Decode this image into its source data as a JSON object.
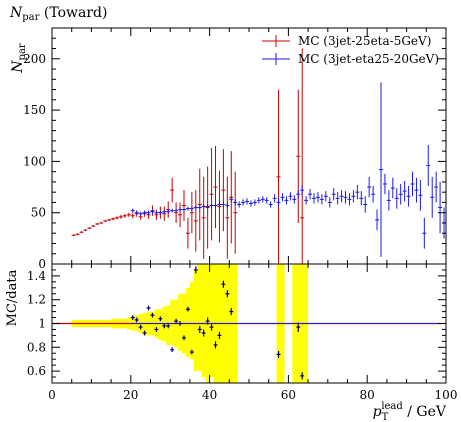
{
  "chart_data": {
    "type": "scatter",
    "title_main": "N",
    "title_sub": "par",
    "title_rest": " (Toward)",
    "ylabel_main": "N",
    "ylabel_sub": "par",
    "ratio_ylabel": "MC/data",
    "xlabel_main": "p",
    "xlabel_sub": "T",
    "xlabel_sup": "lead",
    "xlabel_unit": " / GeV",
    "xlim": [
      0,
      100
    ],
    "ylim": [
      0,
      230
    ],
    "ratio_ylim": [
      0.5,
      1.5
    ],
    "x_ticks": [
      "0",
      "20",
      "40",
      "60",
      "80",
      "100"
    ],
    "y_ticks": [
      "0",
      "50",
      "100",
      "150",
      "200"
    ],
    "ratio_y_ticks": [
      "0.6",
      "0.8",
      "1",
      "1.2",
      "1.4"
    ],
    "legend_position": "top-right",
    "colors": {
      "red_series": "#cc0000",
      "blue_series": "#1a1ae6",
      "band": "#ffff00"
    },
    "series": [
      {
        "name": "MC (3jet-25eta-5GeV)",
        "color": "#cc0000",
        "points": [
          [
            5.5,
            28,
            1
          ],
          [
            6.5,
            29,
            1
          ],
          [
            7.5,
            31,
            1
          ],
          [
            8.5,
            33,
            1
          ],
          [
            9.5,
            35,
            1
          ],
          [
            10.5,
            37,
            1
          ],
          [
            11.5,
            39,
            1
          ],
          [
            12.5,
            40,
            1
          ],
          [
            13.5,
            42,
            1
          ],
          [
            14.5,
            43,
            1
          ],
          [
            15.5,
            44,
            1.5
          ],
          [
            16.5,
            45,
            1.5
          ],
          [
            17.5,
            46,
            2
          ],
          [
            18.5,
            47,
            2
          ],
          [
            19.5,
            48,
            2
          ],
          [
            20.5,
            47,
            2.5
          ],
          [
            21.5,
            49,
            3
          ],
          [
            22.5,
            46,
            3
          ],
          [
            23.5,
            49,
            3
          ],
          [
            24.5,
            48,
            4
          ],
          [
            25.5,
            52,
            5
          ],
          [
            26.5,
            48,
            5
          ],
          [
            27.5,
            50,
            6
          ],
          [
            28.5,
            49,
            7
          ],
          [
            29.5,
            53,
            8
          ],
          [
            30.5,
            72,
            12
          ],
          [
            31.5,
            50,
            10
          ],
          [
            32.5,
            48,
            12
          ],
          [
            33.5,
            57,
            15
          ],
          [
            34.5,
            30,
            15
          ],
          [
            35.5,
            50,
            20
          ],
          [
            36.5,
            42,
            30
          ],
          [
            37.5,
            58,
            35
          ],
          [
            38.5,
            45,
            40
          ],
          [
            39.5,
            55,
            40
          ],
          [
            40.5,
            68,
            45
          ],
          [
            41.5,
            75,
            40
          ],
          [
            42.5,
            56,
            35
          ],
          [
            43.5,
            72,
            40
          ],
          [
            44.5,
            45,
            40
          ],
          [
            45.5,
            65,
            45
          ],
          [
            46.5,
            50,
            40
          ],
          [
            57.5,
            85,
            85
          ],
          [
            62.5,
            105,
            65
          ],
          [
            63.5,
            45,
            165
          ]
        ]
      },
      {
        "name": "MC (3jet-eta25-20GeV)",
        "color": "#1a1ae6",
        "points": [
          [
            20.5,
            52,
            2
          ],
          [
            21.5,
            50,
            2
          ],
          [
            22.5,
            49,
            2
          ],
          [
            23.5,
            50,
            2
          ],
          [
            24.5,
            50,
            2
          ],
          [
            25.5,
            51,
            2
          ],
          [
            26.5,
            50,
            2
          ],
          [
            27.5,
            50,
            2
          ],
          [
            28.5,
            51,
            2
          ],
          [
            29.5,
            51,
            2
          ],
          [
            30.5,
            52,
            2
          ],
          [
            31.5,
            52,
            2
          ],
          [
            32.5,
            53,
            2
          ],
          [
            33.5,
            53,
            2
          ],
          [
            34.5,
            54,
            2
          ],
          [
            35.5,
            54,
            2
          ],
          [
            36.5,
            55,
            2
          ],
          [
            37.5,
            55,
            2
          ],
          [
            38.5,
            56,
            2
          ],
          [
            39.5,
            56,
            2
          ],
          [
            40.5,
            57,
            2
          ],
          [
            41.5,
            57,
            2
          ],
          [
            42.5,
            58,
            3
          ],
          [
            43.5,
            58,
            3
          ],
          [
            44.5,
            57,
            3
          ],
          [
            45.5,
            63,
            3
          ],
          [
            46.5,
            60,
            3
          ],
          [
            47.5,
            58,
            3
          ],
          [
            48.5,
            60,
            3
          ],
          [
            49.5,
            61,
            3
          ],
          [
            50.5,
            59,
            3
          ],
          [
            51.5,
            60,
            3
          ],
          [
            52.5,
            62,
            3
          ],
          [
            53.5,
            63,
            3
          ],
          [
            54.5,
            62,
            3
          ],
          [
            55.5,
            58,
            3
          ],
          [
            56.5,
            64,
            4
          ],
          [
            57.5,
            60,
            4
          ],
          [
            58.5,
            65,
            4
          ],
          [
            59.5,
            62,
            4
          ],
          [
            60.5,
            66,
            4
          ],
          [
            61.5,
            63,
            4
          ],
          [
            62.5,
            68,
            4
          ],
          [
            63.5,
            72,
            5
          ],
          [
            64.5,
            62,
            4
          ],
          [
            65.5,
            68,
            5
          ],
          [
            66.5,
            64,
            5
          ],
          [
            67.5,
            65,
            5
          ],
          [
            68.5,
            63,
            5
          ],
          [
            69.5,
            66,
            5
          ],
          [
            70.5,
            60,
            5
          ],
          [
            71.5,
            68,
            6
          ],
          [
            72.5,
            64,
            6
          ],
          [
            73.5,
            66,
            6
          ],
          [
            74.5,
            65,
            6
          ],
          [
            75.5,
            63,
            6
          ],
          [
            76.5,
            66,
            6
          ],
          [
            77.5,
            70,
            7
          ],
          [
            78.5,
            64,
            7
          ],
          [
            79.5,
            58,
            8
          ],
          [
            80.5,
            75,
            10
          ],
          [
            81.5,
            68,
            8
          ],
          [
            82.5,
            43,
            10
          ],
          [
            83.5,
            92,
            85
          ],
          [
            84.5,
            78,
            10
          ],
          [
            85.5,
            62,
            10
          ],
          [
            86.5,
            74,
            10
          ],
          [
            87.5,
            64,
            10
          ],
          [
            88.5,
            68,
            10
          ],
          [
            89.5,
            71,
            10
          ],
          [
            90.5,
            66,
            10
          ],
          [
            91.5,
            78,
            12
          ],
          [
            92.5,
            72,
            12
          ],
          [
            93.5,
            67,
            15
          ],
          [
            94.5,
            30,
            15
          ],
          [
            95.5,
            96,
            20
          ],
          [
            96.5,
            65,
            20
          ],
          [
            97.5,
            75,
            15
          ],
          [
            98.5,
            55,
            25
          ],
          [
            99.5,
            40,
            15
          ]
        ]
      }
    ],
    "ratio_band": [
      [
        5,
        0.97,
        1.03
      ],
      [
        6,
        0.97,
        1.03
      ],
      [
        7,
        0.97,
        1.03
      ],
      [
        8,
        0.97,
        1.03
      ],
      [
        9,
        0.97,
        1.03
      ],
      [
        10,
        0.97,
        1.03
      ],
      [
        11,
        0.97,
        1.03
      ],
      [
        12,
        0.97,
        1.03
      ],
      [
        13,
        0.97,
        1.03
      ],
      [
        14,
        0.97,
        1.03
      ],
      [
        15,
        0.96,
        1.04
      ],
      [
        16,
        0.96,
        1.04
      ],
      [
        17,
        0.96,
        1.04
      ],
      [
        18,
        0.96,
        1.04
      ],
      [
        19,
        0.95,
        1.05
      ],
      [
        20,
        0.94,
        1.06
      ],
      [
        21,
        0.94,
        1.07
      ],
      [
        22,
        0.92,
        1.08
      ],
      [
        23,
        0.9,
        1.09
      ],
      [
        24,
        0.9,
        1.1
      ],
      [
        25,
        0.9,
        1.1
      ],
      [
        26,
        0.88,
        1.12
      ],
      [
        27,
        0.86,
        1.12
      ],
      [
        28,
        0.85,
        1.14
      ],
      [
        29,
        0.82,
        1.15
      ],
      [
        30,
        0.82,
        1.2
      ],
      [
        31,
        0.8,
        1.2
      ],
      [
        32,
        0.77,
        1.25
      ],
      [
        33,
        0.75,
        1.25
      ],
      [
        34,
        0.72,
        1.3
      ],
      [
        35,
        0.7,
        1.35
      ],
      [
        36,
        0.6,
        1.45
      ],
      [
        37,
        0.6,
        1.5
      ],
      [
        38,
        0.55,
        1.5
      ],
      [
        39,
        0.5,
        1.5
      ],
      [
        40,
        0.55,
        1.5
      ],
      [
        41,
        0.5,
        1.5
      ],
      [
        42,
        0.5,
        1.5
      ],
      [
        43,
        0.5,
        1.5
      ],
      [
        44,
        0.5,
        1.5
      ],
      [
        45,
        0.5,
        1.5
      ],
      [
        46,
        0.5,
        1.5
      ],
      [
        57,
        0.5,
        1.5
      ],
      [
        58,
        0.5,
        1.5
      ],
      [
        61,
        0.5,
        1.5
      ],
      [
        62,
        0.5,
        1.5
      ],
      [
        63,
        0.5,
        1.5
      ],
      [
        64,
        0.5,
        1.5
      ]
    ],
    "ratio_points": [
      [
        20.5,
        1.05,
        0.02
      ],
      [
        21.5,
        1.03,
        0.02
      ],
      [
        22.5,
        0.97,
        0.02
      ],
      [
        23.5,
        0.92,
        0.02
      ],
      [
        24.5,
        1.13,
        0.02
      ],
      [
        25.5,
        1.07,
        0.02
      ],
      [
        26.5,
        0.95,
        0.02
      ],
      [
        27.5,
        1.04,
        0.02
      ],
      [
        28.5,
        0.98,
        0.02
      ],
      [
        29.5,
        0.98,
        0.02
      ],
      [
        30.5,
        0.78,
        0.02
      ],
      [
        31.5,
        1.02,
        0.02
      ],
      [
        32.5,
        1.0,
        0.02
      ],
      [
        33.5,
        0.88,
        0.02
      ],
      [
        34.5,
        1.12,
        0.02
      ],
      [
        35.5,
        0.76,
        0.02
      ],
      [
        36.5,
        1.45,
        0.03
      ],
      [
        37.5,
        0.95,
        0.03
      ],
      [
        38.5,
        0.92,
        0.03
      ],
      [
        39.5,
        1.02,
        0.03
      ],
      [
        40.5,
        0.97,
        0.03
      ],
      [
        41.5,
        0.82,
        0.03
      ],
      [
        42.5,
        0.9,
        0.03
      ],
      [
        43.5,
        1.33,
        0.03
      ],
      [
        44.5,
        1.25,
        0.03
      ],
      [
        45.5,
        1.1,
        0.03
      ],
      [
        57.5,
        0.74,
        0.03
      ],
      [
        62.5,
        0.97,
        0.04
      ],
      [
        63.5,
        0.56,
        0.03
      ]
    ]
  }
}
